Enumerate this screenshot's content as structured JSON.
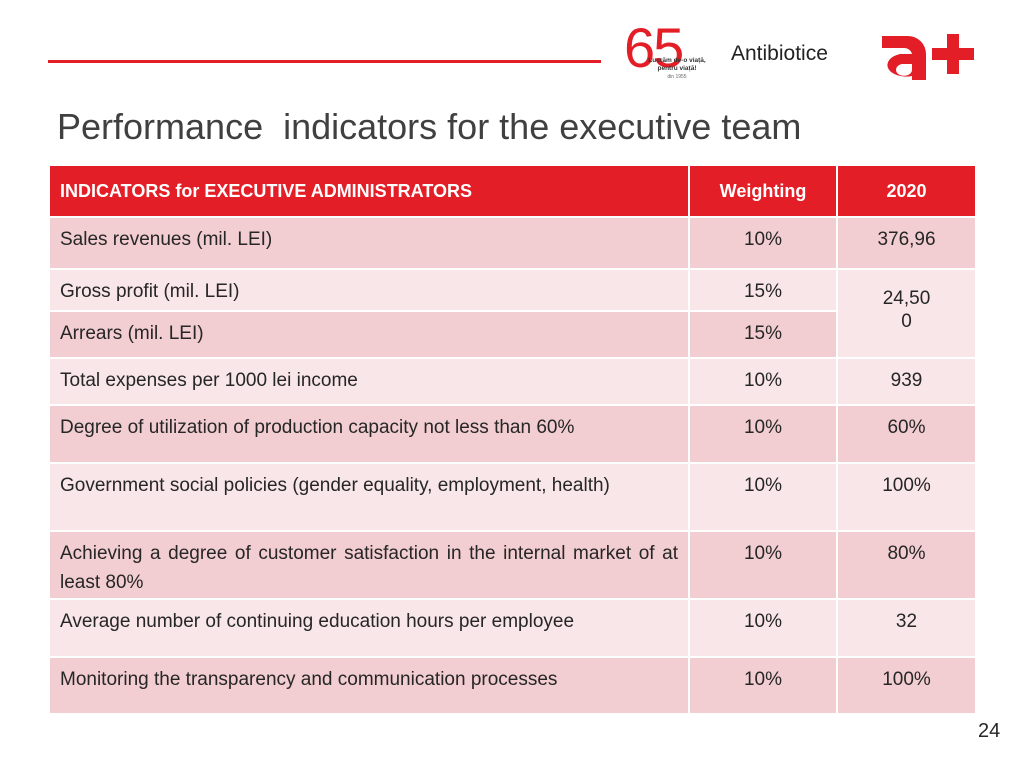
{
  "header": {
    "logo_number": "65",
    "logo_tagline_1": "Lucrăm de-o viață,",
    "logo_tagline_2": "pentru viață!",
    "logo_since": "din 1955",
    "brand_name": "Antibiotice",
    "brand_mark": "a+",
    "accent_color": "#e41e26"
  },
  "title": "Performance  indicators for the executive team",
  "table": {
    "columns": [
      "INDICATORS for EXECUTIVE ADMINISTRATORS",
      "Weighting",
      "2020"
    ],
    "rows": [
      {
        "indicator": "Sales revenues (mil. LEI)",
        "weighting": "10%",
        "value": "376,96"
      },
      {
        "indicator": "Gross profit (mil. LEI)",
        "weighting": "15%",
        "value": "24,50"
      },
      {
        "indicator": "Arrears (mil. LEI)",
        "weighting": "15%",
        "value": "0"
      },
      {
        "indicator": "Total expenses per 1000 lei income",
        "weighting": "10%",
        "value": "939"
      },
      {
        "indicator": "Degree of utilization of production capacity not less than 60%",
        "weighting": "10%",
        "value": "60%"
      },
      {
        "indicator": "Government social policies (gender equality, employment, health)",
        "weighting": "10%",
        "value": "100%"
      },
      {
        "indicator": "Achieving a degree of customer satisfaction in the internal market of at least 80%",
        "weighting": "10%",
        "value": "80%"
      },
      {
        "indicator": "Average number of continuing education hours per employee",
        "weighting": "10%",
        "value": "32"
      },
      {
        "indicator": "Monitoring the transparency and communication processes",
        "weighting": "10%",
        "value": "100%"
      }
    ]
  },
  "page_number": "24"
}
